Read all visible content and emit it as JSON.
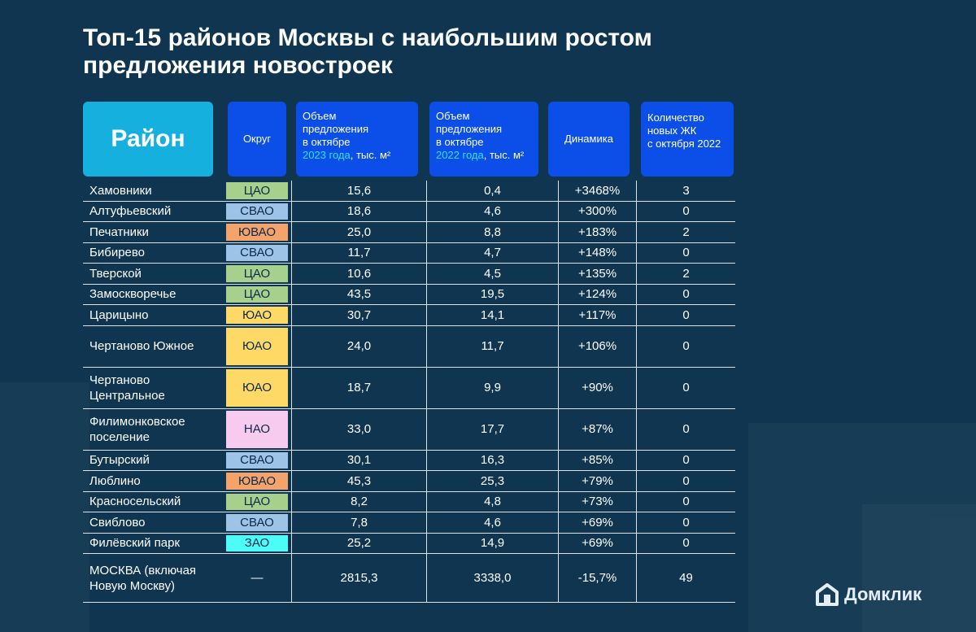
{
  "title_lines": [
    "Топ-15 районов Москвы с наибольшим ростом",
    "предложения новостроек"
  ],
  "header": {
    "district": "Район",
    "okrug": "Округ",
    "v23_line1": "Объем",
    "v23_line2": "предложения",
    "v23_line3": "в октябре",
    "v23_year": "2023 года",
    "v23_unit": ", тыс. м²",
    "v22_line1": "Объем",
    "v22_line2": "предложения",
    "v22_line3": "в октябре",
    "v22_year": "2022 года",
    "v22_unit": ", тыс. м²",
    "dynamics": "Динамика",
    "count_line1": "Количество",
    "count_line2": "новых ЖК",
    "count_line3": "с октября 2022"
  },
  "okrug_colors": {
    "ЦАО": "#a8d08d",
    "СВАО": "#9dc3e6",
    "ЮВАО": "#f4a46a",
    "ЮАО": "#ffd966",
    "НАО": "#f7cbef",
    "ЗАО": "#4dfcf7",
    "—": "transparent"
  },
  "rows": [
    {
      "name": "Хамовники",
      "okrug": "ЦАО",
      "v23": "15,6",
      "v22": "0,4",
      "dyn": "+3468%",
      "cnt": "3",
      "tall": false
    },
    {
      "name": "Алтуфьевский",
      "okrug": "СВАО",
      "v23": "18,6",
      "v22": "4,6",
      "dyn": "+300%",
      "cnt": "0",
      "tall": false
    },
    {
      "name": "Печатники",
      "okrug": "ЮВАО",
      "v23": "25,0",
      "v22": "8,8",
      "dyn": "+183%",
      "cnt": "2",
      "tall": false
    },
    {
      "name": "Бибирево",
      "okrug": "СВАО",
      "v23": "11,7",
      "v22": "4,7",
      "dyn": "+148%",
      "cnt": "0",
      "tall": false
    },
    {
      "name": "Тверской",
      "okrug": "ЦАО",
      "v23": "10,6",
      "v22": "4,5",
      "dyn": "+135%",
      "cnt": "2",
      "tall": false
    },
    {
      "name": "Замоскворечье",
      "okrug": "ЦАО",
      "v23": "43,5",
      "v22": "19,5",
      "dyn": "+124%",
      "cnt": "0",
      "tall": false
    },
    {
      "name": "Царицыно",
      "okrug": "ЮАО",
      "v23": "30,7",
      "v22": "14,1",
      "dyn": "+117%",
      "cnt": "0",
      "tall": false
    },
    {
      "name": "Чертаново Южное",
      "okrug": "ЮАО",
      "v23": "24,0",
      "v22": "11,7",
      "dyn": "+106%",
      "cnt": "0",
      "tall": true
    },
    {
      "name": "Чертаново Центральное",
      "okrug": "ЮАО",
      "v23": "18,7",
      "v22": "9,9",
      "dyn": "+90%",
      "cnt": "0",
      "tall": true
    },
    {
      "name": "Филимонковское поселение",
      "okrug": "НАО",
      "v23": "33,0",
      "v22": "17,7",
      "dyn": "+87%",
      "cnt": "0",
      "tall": true
    },
    {
      "name": "Бутырский",
      "okrug": "СВАО",
      "v23": "30,1",
      "v22": "16,3",
      "dyn": "+85%",
      "cnt": "0",
      "tall": false
    },
    {
      "name": "Люблино",
      "okrug": "ЮВАО",
      "v23": "45,3",
      "v22": "25,3",
      "dyn": "+79%",
      "cnt": "0",
      "tall": false
    },
    {
      "name": "Красносельский",
      "okrug": "ЦАО",
      "v23": "8,2",
      "v22": "4,8",
      "dyn": "+73%",
      "cnt": "0",
      "tall": false
    },
    {
      "name": "Свиблово",
      "okrug": "СВАО",
      "v23": "7,8",
      "v22": "4,6",
      "dyn": "+69%",
      "cnt": "0",
      "tall": false
    },
    {
      "name": "Филёвский парк",
      "okrug": "ЗАО",
      "v23": "25,2",
      "v22": "14,9",
      "dyn": "+69%",
      "cnt": "0",
      "tall": false
    },
    {
      "name": "МОСКВА (включая Новую Москву)",
      "okrug": "—",
      "v23": "2815,3",
      "v22": "3338,0",
      "dyn": "-15,7%",
      "cnt": "49",
      "tall": "total"
    }
  ],
  "logo_text": "Домклик",
  "logo_icon": "house-icon"
}
